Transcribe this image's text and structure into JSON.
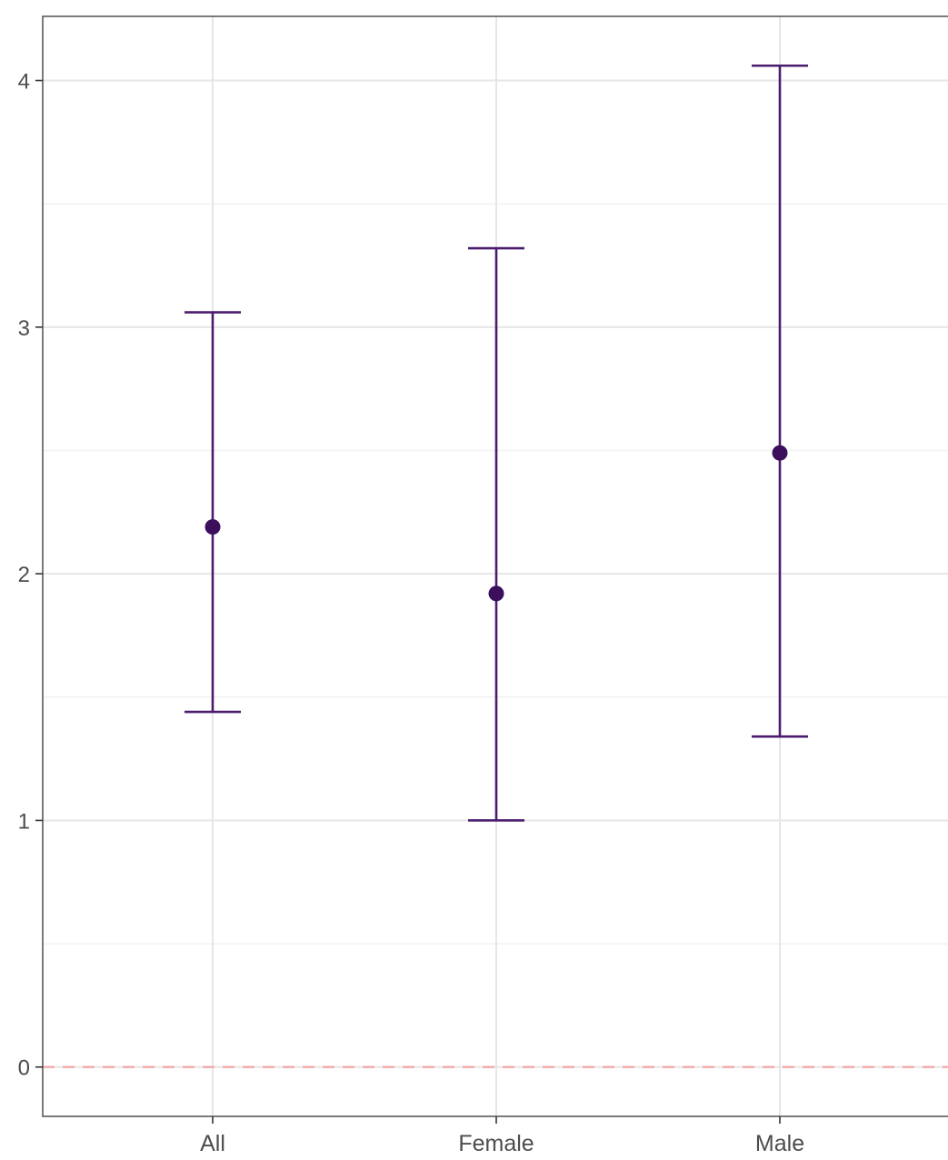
{
  "chart_data": {
    "type": "errorbar",
    "categories": [
      "All",
      "Female",
      "Male"
    ],
    "series": [
      {
        "estimates": [
          2.19,
          1.92,
          2.49
        ],
        "lower": [
          1.44,
          1.0,
          1.34
        ],
        "upper": [
          3.06,
          3.32,
          4.06
        ]
      }
    ],
    "yticks": [
      0,
      1,
      2,
      3,
      4
    ],
    "ylim": [
      -0.2,
      4.26
    ],
    "reference_line": {
      "y": 0,
      "style": "dashed",
      "color": "#f4a6a6"
    },
    "colors": {
      "point": "#3b0f5c",
      "errorbar": "#4b1c6e",
      "grid_major": "#e6e6e6",
      "grid_minor": "#f1f1f1",
      "panel_border": "#5a5a5a",
      "tick_text": "#4d4d4d"
    },
    "grid": true,
    "legend": "none"
  }
}
